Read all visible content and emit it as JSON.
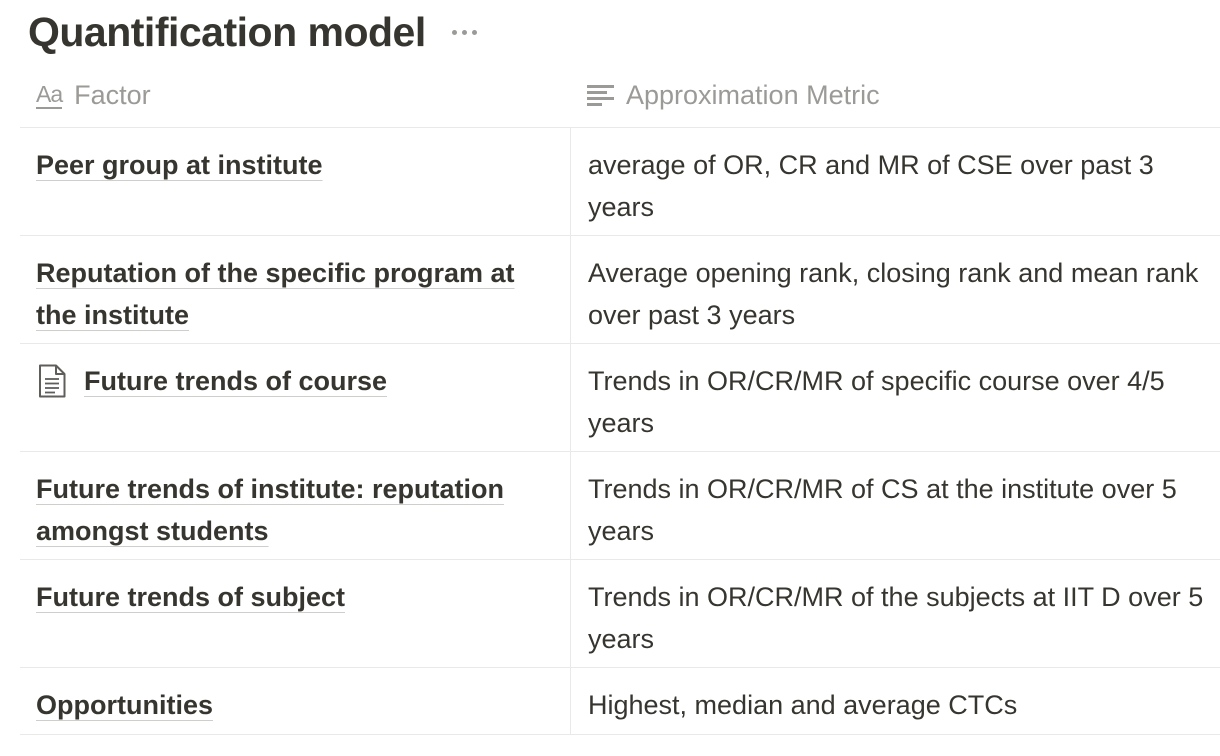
{
  "page": {
    "title": "Quantification model"
  },
  "table": {
    "columns": [
      {
        "label": "Factor",
        "icon": "title-property-icon"
      },
      {
        "label": "Approximation Metric",
        "icon": "text-property-icon"
      }
    ],
    "rows": [
      {
        "factor": "Peer group at institute",
        "metric": "average of OR, CR and MR of CSE over past 3 years",
        "has_page_icon": false
      },
      {
        "factor": "Reputation of the specific program at the institute",
        "metric": "Average opening rank, closing rank and mean rank over past 3 years",
        "has_page_icon": false
      },
      {
        "factor": "Future trends of course",
        "metric": "Trends in OR/CR/MR of specific course over 4/5 years",
        "has_page_icon": true,
        "page_icon": "document-icon"
      },
      {
        "factor": "Future trends of institute: reputation amongst students",
        "metric": "Trends in OR/CR/MR of CS at the institute over 5 years",
        "has_page_icon": false
      },
      {
        "factor": "Future trends of subject",
        "metric": "Trends in OR/CR/MR of the subjects at IIT D over 5 years",
        "has_page_icon": false
      },
      {
        "factor": "Opportunities",
        "metric": "Highest, median and average CTCs",
        "has_page_icon": false
      }
    ]
  },
  "colors": {
    "text": "#37352f",
    "muted": "#9b9a97",
    "divider": "#e9e9e7"
  }
}
